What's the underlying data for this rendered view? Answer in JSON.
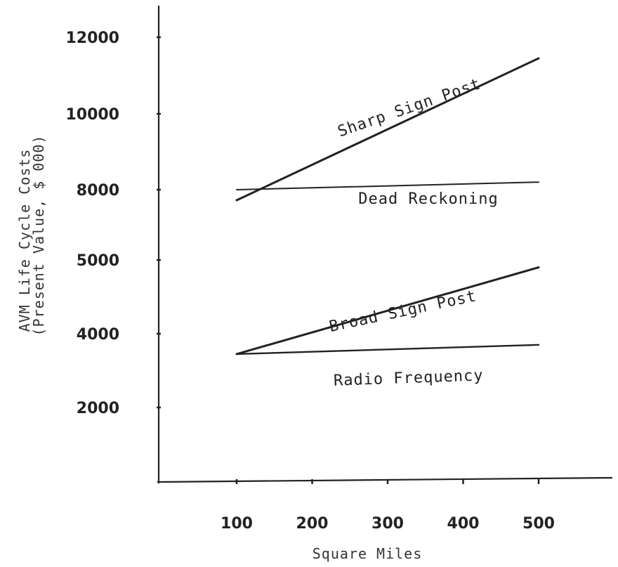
{
  "chart_data": {
    "type": "line",
    "title": "",
    "xlabel": "Square Miles",
    "ylabel_lines": [
      "AVM Life Cycle Costs",
      "(Present Value, $ 000)"
    ],
    "x_ticks": [
      "100",
      "200",
      "300",
      "400",
      "500"
    ],
    "y_ticks": [
      "2000",
      "4000",
      "5000",
      "8000",
      "10000",
      "12000"
    ],
    "grid": false,
    "legend": "none",
    "ink_color": "#222222",
    "series": [
      {
        "name": "Sharp Sign Post",
        "x": [
          100,
          500
        ],
        "y": [
          7550,
          11450
        ]
      },
      {
        "name": "Dead Reckoning",
        "x": [
          100,
          500
        ],
        "y": [
          8000,
          8200
        ]
      },
      {
        "name": "Broad Sign Post",
        "x": [
          100,
          500
        ],
        "y": [
          3450,
          4900
        ]
      },
      {
        "name": "Radio Frequency",
        "x": [
          100,
          500
        ],
        "y": [
          3450,
          3700
        ]
      }
    ]
  }
}
